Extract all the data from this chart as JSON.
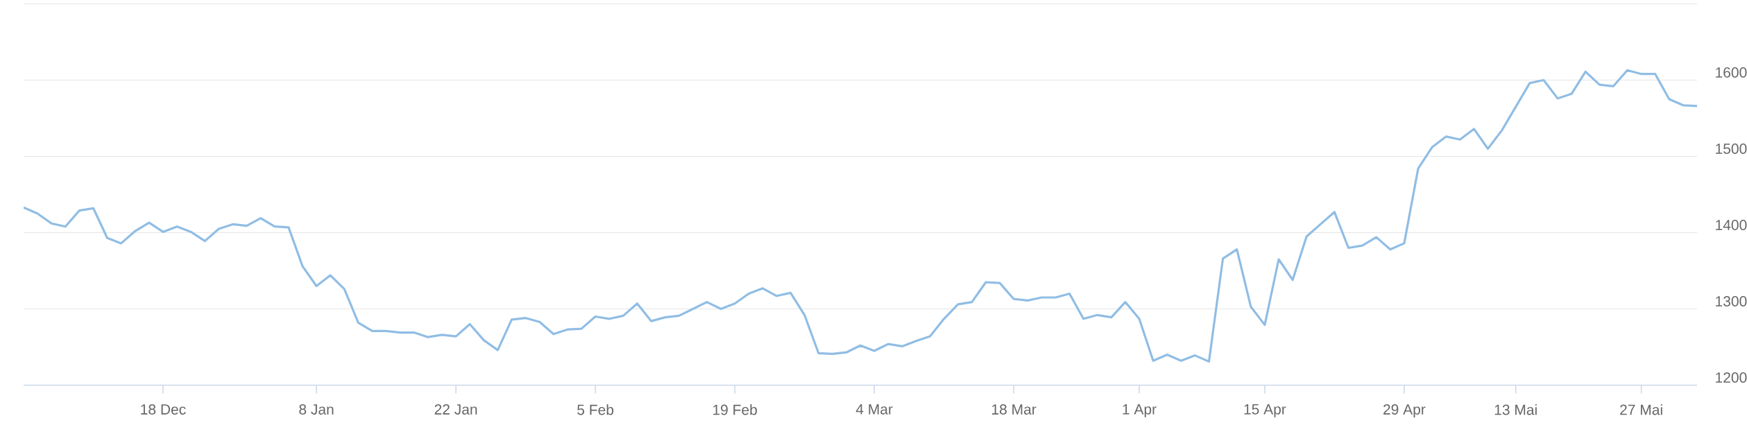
{
  "chart_data": {
    "type": "line",
    "categories": [
      null,
      null,
      null,
      null,
      null,
      null,
      null,
      null,
      null,
      null,
      "18 Dec",
      null,
      null,
      null,
      null,
      null,
      null,
      null,
      null,
      null,
      null,
      "8 Jan",
      null,
      null,
      null,
      null,
      null,
      null,
      null,
      null,
      null,
      "22 Jan",
      null,
      null,
      null,
      null,
      null,
      null,
      null,
      null,
      null,
      "5 Feb",
      null,
      null,
      null,
      null,
      null,
      null,
      null,
      null,
      null,
      "19 Feb",
      null,
      null,
      null,
      null,
      null,
      null,
      null,
      null,
      null,
      "4 Mar",
      null,
      null,
      null,
      null,
      null,
      null,
      null,
      null,
      null,
      "18 Mar",
      null,
      null,
      null,
      null,
      null,
      null,
      null,
      null,
      "1 Apr",
      null,
      null,
      null,
      null,
      null,
      null,
      null,
      null,
      "15 Apr",
      null,
      null,
      null,
      null,
      null,
      null,
      null,
      null,
      null,
      "29 Apr",
      null,
      null,
      null,
      null,
      null,
      null,
      null,
      "13 Mai",
      null,
      null,
      null,
      null,
      null,
      null,
      null,
      null,
      "27 Mai",
      null,
      null,
      null,
      null
    ],
    "values": [
      1433,
      1425,
      1412,
      1408,
      1429,
      1432,
      1393,
      1386,
      1402,
      1413,
      1401,
      1408,
      1401,
      1389,
      1405,
      1411,
      1409,
      1419,
      1408,
      1407,
      1356,
      1330,
      1344,
      1326,
      1282,
      1271,
      1271,
      1269,
      1269,
      1263,
      1266,
      1264,
      1280,
      1259,
      1246,
      1286,
      1288,
      1283,
      1267,
      1273,
      1274,
      1290,
      1287,
      1291,
      1307,
      1284,
      1289,
      1291,
      1300,
      1309,
      1300,
      1307,
      1320,
      1327,
      1317,
      1321,
      1292,
      1242,
      1241,
      1243,
      1252,
      1245,
      1254,
      1251,
      1258,
      1264,
      1287,
      1306,
      1309,
      1335,
      1334,
      1313,
      1311,
      1315,
      1315,
      1320,
      1287,
      1292,
      1289,
      1309,
      1287,
      1232,
      1240,
      1232,
      1239,
      1231,
      1366,
      1378,
      1303,
      1279,
      1365,
      1338,
      1395,
      1411,
      1427,
      1380,
      1383,
      1394,
      1378,
      1386,
      1484,
      1512,
      1526,
      1522,
      1536,
      1510,
      1534,
      1565,
      1596,
      1600,
      1576,
      1582,
      1611,
      1594,
      1592,
      1613,
      1608,
      1608,
      1575,
      1567,
      1566
    ],
    "color": "#90bde4",
    "ylim": [
      1200,
      1700
    ],
    "yticks": [
      1200,
      1300,
      1400,
      1500,
      1600,
      {
        "value": 1700,
        "label": null
      }
    ],
    "grid": "y"
  }
}
